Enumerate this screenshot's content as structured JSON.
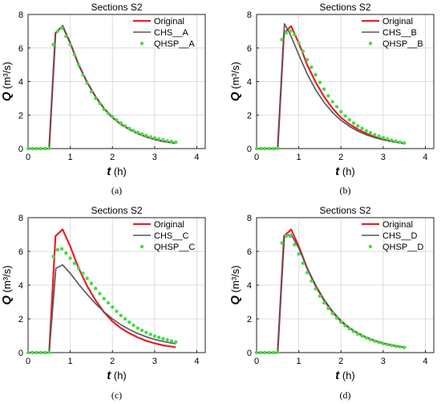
{
  "chart_data": [
    {
      "panel_label": "(a)",
      "type": "line",
      "title": "Sections S2",
      "xlabel_var": "t",
      "xlabel_unit": " (h)",
      "ylabel_var": "Q",
      "ylabel_unit": " (m³/s)",
      "xlim": [
        0,
        4.2
      ],
      "ylim": [
        0,
        8
      ],
      "xticks": [
        "0",
        "1",
        "2",
        "3",
        "4"
      ],
      "yticks": [
        "0",
        "2",
        "4",
        "6",
        "8"
      ],
      "grid": true,
      "legend_position": "top-right",
      "series": [
        {
          "name": "Original",
          "style": "solid",
          "color": "#e8202a",
          "x": [
            0,
            0.5,
            0.65,
            0.82,
            1.0,
            1.2,
            1.4,
            1.6,
            1.8,
            2.0,
            2.2,
            2.4,
            2.6,
            2.8,
            3.0,
            3.2,
            3.5
          ],
          "y": [
            0,
            0,
            6.9,
            7.3,
            6.3,
            5.0,
            3.95,
            3.1,
            2.4,
            1.85,
            1.45,
            1.15,
            0.9,
            0.7,
            0.55,
            0.43,
            0.32
          ]
        },
        {
          "name": "CHS__A",
          "style": "solid",
          "color": "#555555",
          "x": [
            0,
            0.5,
            0.65,
            0.82,
            1.0,
            1.2,
            1.4,
            1.6,
            1.8,
            2.0,
            2.2,
            2.4,
            2.6,
            2.8,
            3.0,
            3.2,
            3.5
          ],
          "y": [
            0,
            0,
            6.85,
            7.35,
            6.3,
            5.0,
            3.95,
            3.1,
            2.4,
            1.85,
            1.45,
            1.15,
            0.9,
            0.7,
            0.55,
            0.43,
            0.32
          ]
        },
        {
          "name": "QHSP__A",
          "style": "dots",
          "color": "#44dd44",
          "x": [
            0,
            0.1,
            0.2,
            0.3,
            0.4,
            0.5,
            0.6,
            0.7,
            0.8,
            0.9,
            1.0,
            1.1,
            1.2,
            1.3,
            1.4,
            1.5,
            1.6,
            1.7,
            1.8,
            1.9,
            2.0,
            2.1,
            2.2,
            2.3,
            2.4,
            2.5,
            2.6,
            2.7,
            2.8,
            2.9,
            3.0,
            3.1,
            3.2,
            3.3,
            3.4,
            3.5
          ],
          "y": [
            0,
            0,
            0,
            0,
            0,
            0.02,
            6.2,
            7.0,
            7.2,
            6.7,
            6.2,
            5.6,
            5.0,
            4.4,
            3.9,
            3.4,
            3.0,
            2.7,
            2.35,
            2.1,
            1.9,
            1.7,
            1.52,
            1.35,
            1.2,
            1.07,
            0.96,
            0.87,
            0.78,
            0.7,
            0.63,
            0.57,
            0.51,
            0.46,
            0.42,
            0.38
          ]
        }
      ]
    },
    {
      "panel_label": "(b)",
      "type": "line",
      "title": "Sections S2",
      "xlabel_var": "t",
      "xlabel_unit": " (h)",
      "ylabel_var": "Q",
      "ylabel_unit": " (m³/s)",
      "xlim": [
        0,
        4.2
      ],
      "ylim": [
        0,
        8
      ],
      "xticks": [
        "0",
        "1",
        "2",
        "3",
        "4"
      ],
      "yticks": [
        "0",
        "2",
        "4",
        "6",
        "8"
      ],
      "grid": true,
      "legend_position": "top-right",
      "series": [
        {
          "name": "Original",
          "style": "solid",
          "color": "#e8202a",
          "x": [
            0,
            0.5,
            0.65,
            0.82,
            1.0,
            1.2,
            1.4,
            1.6,
            1.8,
            2.0,
            2.2,
            2.4,
            2.6,
            2.8,
            3.0,
            3.2,
            3.5
          ],
          "y": [
            0,
            0,
            6.9,
            7.3,
            6.3,
            5.0,
            3.95,
            3.1,
            2.4,
            1.85,
            1.45,
            1.15,
            0.9,
            0.7,
            0.55,
            0.43,
            0.32
          ]
        },
        {
          "name": "CHS__B",
          "style": "solid",
          "color": "#555555",
          "x": [
            0,
            0.5,
            0.66,
            0.8,
            1.0,
            1.2,
            1.4,
            1.6,
            1.8,
            2.0,
            2.2,
            2.4,
            2.6,
            2.8,
            3.0,
            3.2,
            3.5
          ],
          "y": [
            0,
            0,
            7.45,
            6.8,
            5.6,
            4.45,
            3.5,
            2.75,
            2.15,
            1.68,
            1.32,
            1.04,
            0.82,
            0.65,
            0.52,
            0.42,
            0.3
          ]
        },
        {
          "name": "QHSP__B",
          "style": "dots",
          "color": "#44dd44",
          "x": [
            0,
            0.1,
            0.2,
            0.3,
            0.4,
            0.5,
            0.6,
            0.7,
            0.8,
            0.9,
            1.0,
            1.1,
            1.2,
            1.3,
            1.4,
            1.5,
            1.6,
            1.7,
            1.8,
            1.9,
            2.0,
            2.1,
            2.2,
            2.3,
            2.4,
            2.5,
            2.6,
            2.7,
            2.8,
            2.9,
            3.0,
            3.1,
            3.2,
            3.3,
            3.4,
            3.5
          ],
          "y": [
            0,
            0,
            0,
            0,
            0,
            0.02,
            6.5,
            6.9,
            7.0,
            6.8,
            6.3,
            5.8,
            5.3,
            4.85,
            4.4,
            3.95,
            3.55,
            3.15,
            2.8,
            2.5,
            2.2,
            1.95,
            1.72,
            1.52,
            1.35,
            1.2,
            1.06,
            0.94,
            0.83,
            0.74,
            0.65,
            0.57,
            0.5,
            0.44,
            0.38,
            0.33
          ]
        }
      ]
    },
    {
      "panel_label": "(c)",
      "type": "line",
      "title": "Sections S2",
      "xlabel_var": "t",
      "xlabel_unit": " (h)",
      "ylabel_var": "Q",
      "ylabel_unit": " (m³/s)",
      "xlim": [
        0,
        4.2
      ],
      "ylim": [
        0,
        8
      ],
      "xticks": [
        "0",
        "1",
        "2",
        "3",
        "4"
      ],
      "yticks": [
        "0",
        "2",
        "4",
        "6",
        "8"
      ],
      "grid": true,
      "legend_position": "top-right",
      "series": [
        {
          "name": "Original",
          "style": "solid",
          "color": "#e8202a",
          "x": [
            0,
            0.5,
            0.65,
            0.82,
            1.0,
            1.2,
            1.4,
            1.6,
            1.8,
            2.0,
            2.2,
            2.4,
            2.6,
            2.8,
            3.0,
            3.2,
            3.5
          ],
          "y": [
            0,
            0,
            6.9,
            7.3,
            6.3,
            5.0,
            3.95,
            3.1,
            2.4,
            1.85,
            1.45,
            1.15,
            0.9,
            0.7,
            0.55,
            0.43,
            0.32
          ]
        },
        {
          "name": "CHS__C",
          "style": "solid",
          "color": "#555555",
          "x": [
            0,
            0.5,
            0.66,
            0.82,
            1.0,
            1.2,
            1.4,
            1.6,
            1.8,
            2.0,
            2.2,
            2.4,
            2.6,
            2.8,
            3.0,
            3.2,
            3.5
          ],
          "y": [
            0,
            0,
            5.0,
            5.2,
            4.7,
            4.05,
            3.45,
            2.9,
            2.42,
            2.0,
            1.65,
            1.37,
            1.13,
            0.94,
            0.78,
            0.66,
            0.52
          ]
        },
        {
          "name": "QHSP__C",
          "style": "dots",
          "color": "#44dd44",
          "x": [
            0,
            0.1,
            0.2,
            0.3,
            0.4,
            0.5,
            0.6,
            0.7,
            0.8,
            0.9,
            1.0,
            1.1,
            1.2,
            1.3,
            1.4,
            1.5,
            1.6,
            1.7,
            1.8,
            1.9,
            2.0,
            2.1,
            2.2,
            2.3,
            2.4,
            2.5,
            2.6,
            2.7,
            2.8,
            2.9,
            3.0,
            3.1,
            3.2,
            3.3,
            3.4,
            3.5
          ],
          "y": [
            0,
            0,
            0,
            0,
            0,
            0.02,
            5.7,
            6.1,
            6.15,
            5.9,
            5.6,
            5.3,
            5.0,
            4.7,
            4.4,
            4.1,
            3.8,
            3.5,
            3.2,
            2.95,
            2.7,
            2.45,
            2.2,
            2.0,
            1.8,
            1.62,
            1.45,
            1.32,
            1.2,
            1.08,
            0.98,
            0.9,
            0.82,
            0.75,
            0.68,
            0.62
          ]
        }
      ]
    },
    {
      "panel_label": "(d)",
      "type": "line",
      "title": "Sections S2",
      "xlabel_var": "t",
      "xlabel_unit": " (h)",
      "ylabel_var": "Q",
      "ylabel_unit": " (m³/s)",
      "xlim": [
        0,
        4.2
      ],
      "ylim": [
        0,
        8
      ],
      "xticks": [
        "0",
        "1",
        "2",
        "3",
        "4"
      ],
      "yticks": [
        "0",
        "2",
        "4",
        "6",
        "8"
      ],
      "grid": true,
      "legend_position": "top-right",
      "series": [
        {
          "name": "Original",
          "style": "solid",
          "color": "#e8202a",
          "x": [
            0,
            0.5,
            0.65,
            0.82,
            1.0,
            1.2,
            1.4,
            1.6,
            1.8,
            2.0,
            2.2,
            2.4,
            2.6,
            2.8,
            3.0,
            3.2,
            3.5
          ],
          "y": [
            0,
            0,
            6.9,
            7.3,
            6.3,
            5.0,
            3.95,
            3.1,
            2.4,
            1.85,
            1.45,
            1.15,
            0.9,
            0.7,
            0.55,
            0.43,
            0.32
          ]
        },
        {
          "name": "CHS__D",
          "style": "solid",
          "color": "#555555",
          "x": [
            0,
            0.5,
            0.66,
            0.82,
            1.0,
            1.2,
            1.4,
            1.6,
            1.8,
            2.0,
            2.2,
            2.4,
            2.6,
            2.8,
            3.0,
            3.2,
            3.5
          ],
          "y": [
            0,
            0,
            6.9,
            7.0,
            6.2,
            5.0,
            4.0,
            3.15,
            2.45,
            1.9,
            1.48,
            1.16,
            0.92,
            0.72,
            0.57,
            0.45,
            0.33
          ]
        },
        {
          "name": "QHSP__D",
          "style": "dots",
          "color": "#44dd44",
          "x": [
            0,
            0.1,
            0.2,
            0.3,
            0.4,
            0.5,
            0.6,
            0.7,
            0.8,
            0.9,
            1.0,
            1.1,
            1.2,
            1.3,
            1.4,
            1.5,
            1.6,
            1.7,
            1.8,
            1.9,
            2.0,
            2.1,
            2.2,
            2.3,
            2.4,
            2.5,
            2.6,
            2.7,
            2.8,
            2.9,
            3.0,
            3.1,
            3.2,
            3.3,
            3.4,
            3.5
          ],
          "y": [
            0,
            0,
            0,
            0,
            0,
            0.02,
            6.5,
            6.9,
            6.9,
            6.4,
            5.85,
            5.3,
            4.75,
            4.25,
            3.78,
            3.35,
            2.95,
            2.62,
            2.32,
            2.05,
            1.82,
            1.6,
            1.42,
            1.25,
            1.1,
            0.98,
            0.87,
            0.77,
            0.68,
            0.61,
            0.54,
            0.48,
            0.43,
            0.38,
            0.34,
            0.3
          ]
        }
      ]
    }
  ]
}
